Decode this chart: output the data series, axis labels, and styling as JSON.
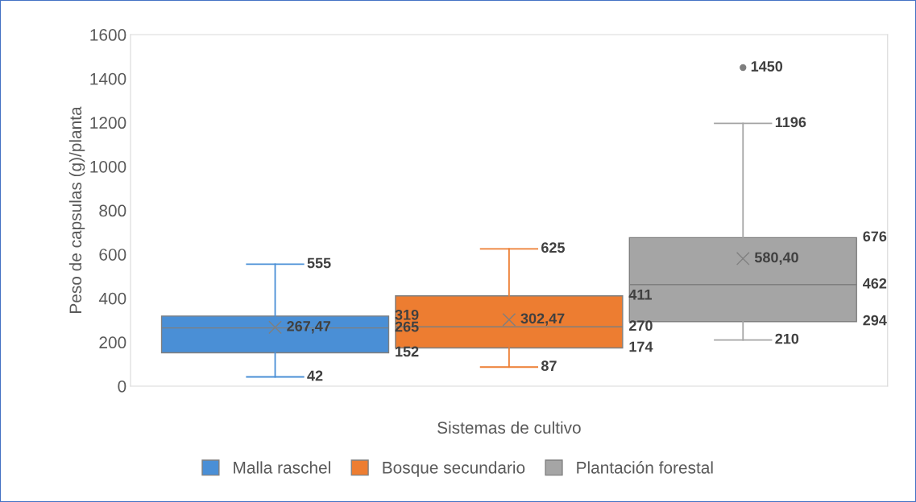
{
  "chart_data": {
    "type": "box",
    "xlabel": "Sistemas de cultivo",
    "ylabel": "Peso de capsulas (g)/planta",
    "categories": [
      null
    ],
    "ylim": [
      0,
      1600
    ],
    "yticks": [
      0,
      200,
      400,
      600,
      800,
      1000,
      1200,
      1400,
      1600
    ],
    "grid": false,
    "legend": "bottom",
    "series": [
      {
        "name": "Malla raschel",
        "color": "#4a8fd6",
        "boxes": [
          {
            "low": 42,
            "q1": 152,
            "median": 265,
            "q3": 319,
            "high": 555,
            "mean": 267.47
          }
        ]
      },
      {
        "name": "Bosque secundario",
        "color": "#ed7d31",
        "boxes": [
          {
            "low": 87,
            "q1": 174,
            "median": 270,
            "q3": 411,
            "high": 625,
            "mean": 302.47
          }
        ]
      },
      {
        "name": "Plantación forestal",
        "color": "#a5a5a5",
        "boxes": [
          {
            "low": 210,
            "q1": 294,
            "median": 462,
            "q3": 676,
            "high": 1196,
            "mean": 580.4,
            "outliers": [
              1450
            ]
          }
        ]
      }
    ],
    "annotations": [
      "42",
      "152",
      "265",
      "319",
      "555",
      "267,47",
      "87",
      "174",
      "270",
      "411",
      "625",
      "302,47",
      "210",
      "294",
      "462",
      "676",
      "1196",
      "580,40",
      "1450"
    ]
  }
}
